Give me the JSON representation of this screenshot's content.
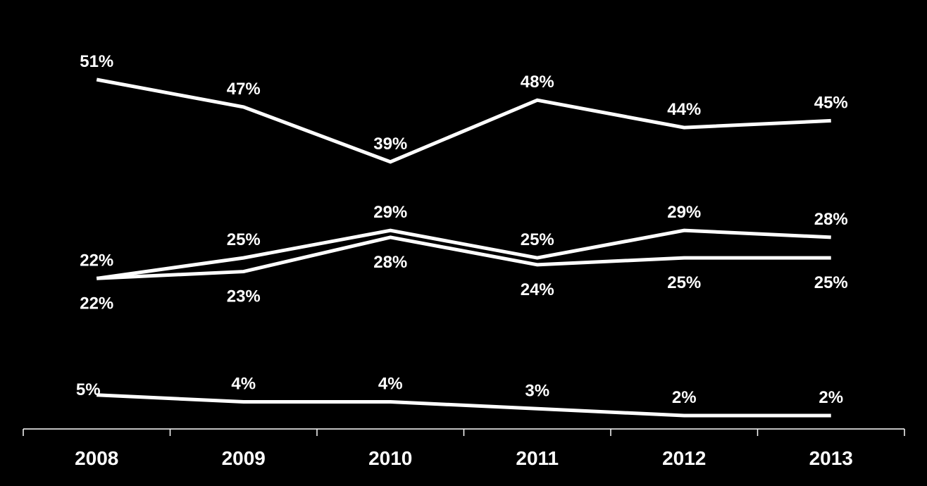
{
  "colors": {
    "background": "#000000",
    "foreground": "#ffffff"
  },
  "chart_data": {
    "type": "line",
    "title": "",
    "xlabel": "",
    "ylabel": "",
    "ylim": [
      0,
      55
    ],
    "grid": false,
    "legend": "none",
    "categories": [
      "2008",
      "2009",
      "2010",
      "2011",
      "2012",
      "2013"
    ],
    "series": [
      {
        "values": [
          51,
          47,
          39,
          48,
          44,
          45
        ],
        "labels": [
          "51%",
          "47%",
          "39%",
          "48%",
          "44%",
          "45%"
        ],
        "label_position": [
          "above",
          "above",
          "above",
          "above",
          "above",
          "above"
        ]
      },
      {
        "values": [
          22,
          25,
          29,
          25,
          29,
          28
        ],
        "labels": [
          "22%",
          "25%",
          "29%",
          "25%",
          "29%",
          "28%"
        ],
        "label_position": [
          "above",
          "above",
          "above",
          "above",
          "above",
          "above"
        ]
      },
      {
        "values": [
          22,
          23,
          28,
          24,
          25,
          25
        ],
        "labels": [
          "22%",
          "23%",
          "28%",
          "24%",
          "25%",
          "25%"
        ],
        "label_position": [
          "below",
          "below",
          "below",
          "below",
          "below",
          "below"
        ]
      },
      {
        "values": [
          5,
          4,
          4,
          3,
          2,
          2
        ],
        "labels": [
          "5%",
          "4%",
          "4%",
          "3%",
          "2%",
          "2%"
        ],
        "label_position": [
          "left",
          "above",
          "above",
          "above",
          "above",
          "above"
        ]
      }
    ]
  }
}
